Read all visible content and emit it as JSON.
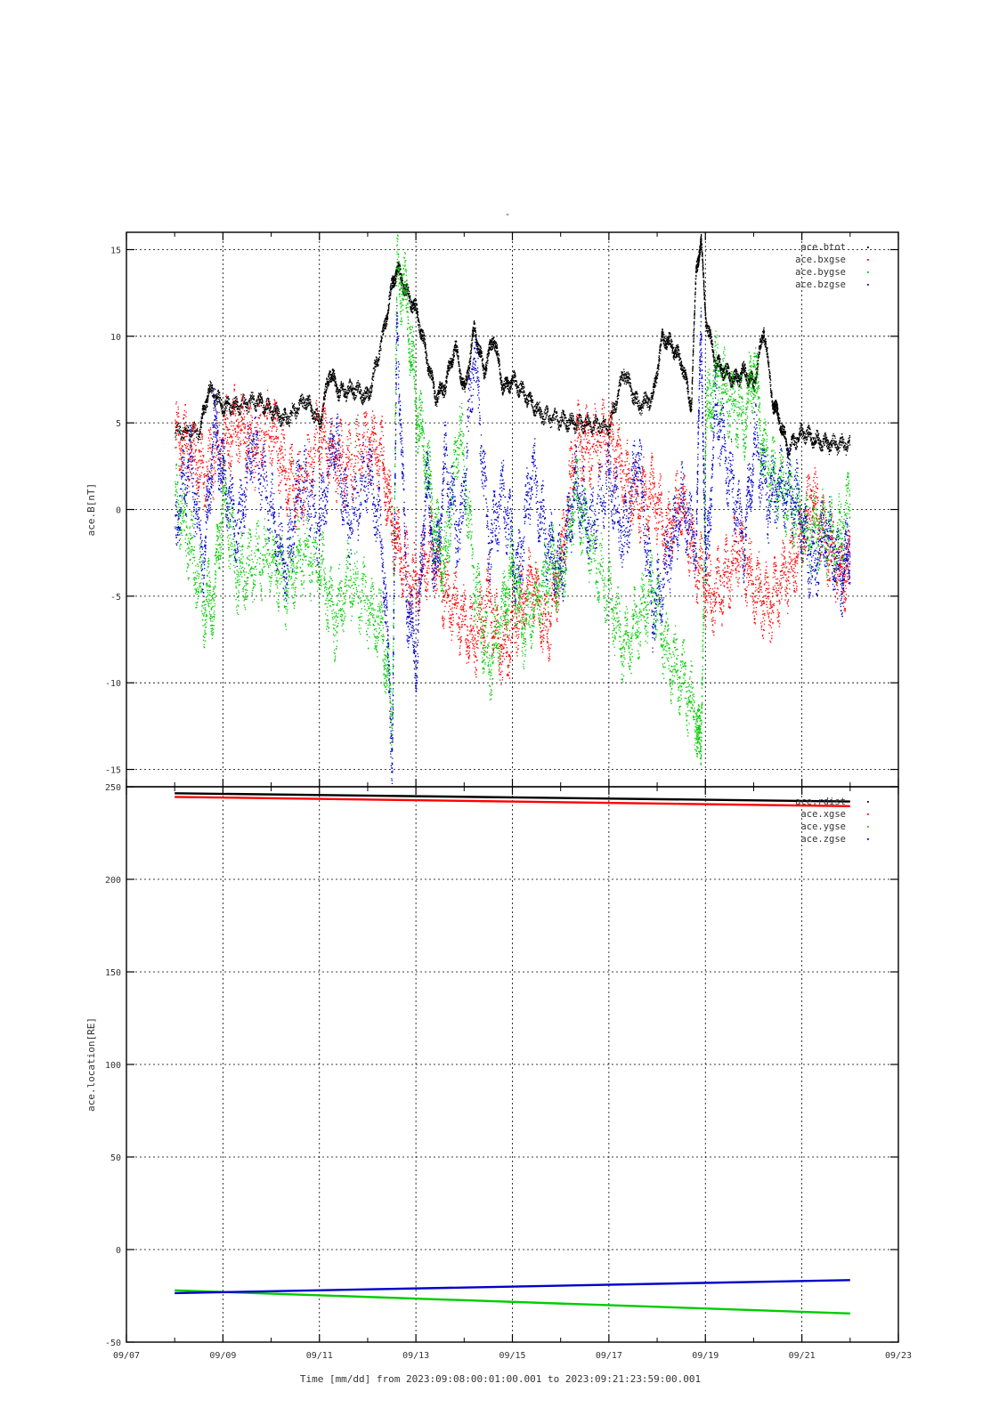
{
  "figure": {
    "title": "-",
    "xlabel": "Time [mm/dd]  from 2023:09:08:00:01:00.001  to  2023:09:21:23:59:00.001"
  },
  "chart_data": [
    {
      "type": "scatter",
      "ylabel": "ace.B[nT]",
      "ylim": [
        -16,
        16
      ],
      "yticks": [
        -15,
        -10,
        -5,
        0,
        5,
        10,
        15
      ],
      "xlim": [
        0,
        16
      ],
      "x_unit": "days since 09/07 00:00",
      "x_range_data": [
        1.0007,
        14.9993
      ],
      "xtick_labels": [
        "09/07",
        "09/09",
        "09/11",
        "09/13",
        "09/15",
        "09/17",
        "09/19",
        "09/21",
        "09/23"
      ],
      "xtick_values": [
        0,
        2,
        4,
        6,
        8,
        10,
        12,
        14,
        16
      ],
      "grid": true,
      "legend_position": "top-right",
      "series": [
        {
          "name": "ace.btot",
          "color": "#000000",
          "x": [
            1.0,
            1.5,
            1.7,
            2.0,
            2.3,
            2.7,
            3.0,
            3.3,
            3.7,
            4.0,
            4.2,
            4.4,
            4.7,
            5.0,
            5.3,
            5.5,
            5.6,
            5.8,
            6.0,
            6.2,
            6.4,
            6.6,
            6.8,
            7.0,
            7.2,
            7.4,
            7.6,
            7.8,
            8.0,
            8.3,
            8.6,
            9.0,
            9.3,
            9.6,
            10.0,
            10.3,
            10.6,
            10.9,
            11.1,
            11.3,
            11.5,
            11.7,
            11.8,
            11.9,
            12.0,
            12.2,
            12.4,
            12.6,
            12.8,
            13.0,
            13.2,
            13.4,
            13.5,
            13.7,
            14.0,
            14.3,
            14.6,
            14.99
          ],
          "y": [
            4.5,
            4.5,
            7.0,
            6.0,
            6.0,
            6.3,
            5.8,
            5.2,
            6.4,
            5.0,
            8.0,
            6.8,
            7.0,
            6.5,
            10.0,
            13.0,
            14.0,
            12.5,
            11.5,
            9.0,
            6.5,
            7.2,
            9.5,
            6.8,
            10.5,
            8.0,
            10.0,
            7.0,
            7.5,
            6.5,
            5.5,
            5.2,
            5.0,
            5.0,
            4.8,
            8.0,
            6.0,
            6.5,
            10.0,
            9.5,
            8.5,
            6.0,
            14.0,
            15.5,
            11.0,
            8.5,
            8.0,
            7.5,
            8.0,
            7.2,
            10.5,
            6.0,
            5.5,
            3.5,
            4.5,
            4.0,
            3.8,
            3.8
          ]
        },
        {
          "name": "ace.bxgse",
          "color": "#ff0000",
          "x": [
            1.0,
            1.3,
            1.6,
            2.0,
            2.3,
            2.6,
            3.0,
            3.3,
            3.6,
            4.0,
            4.3,
            4.6,
            5.0,
            5.3,
            5.5,
            5.7,
            6.0,
            6.3,
            6.6,
            6.9,
            7.2,
            7.5,
            7.8,
            8.1,
            8.4,
            8.7,
            9.0,
            9.3,
            9.6,
            10.0,
            10.3,
            10.6,
            10.9,
            11.2,
            11.5,
            11.8,
            12.1,
            12.4,
            12.7,
            13.0,
            13.3,
            13.6,
            13.9,
            14.2,
            14.5,
            14.8,
            14.99
          ],
          "y": [
            4.0,
            3.5,
            2.0,
            4.0,
            5.0,
            3.5,
            4.8,
            2.0,
            1.0,
            4.5,
            3.0,
            2.5,
            4.0,
            3.0,
            -1.0,
            -3.0,
            -4.5,
            -2.0,
            -5.0,
            -6.0,
            -7.5,
            -5.0,
            -8.5,
            -6.0,
            -4.0,
            -7.0,
            -3.0,
            4.0,
            3.5,
            4.5,
            2.0,
            0.5,
            1.0,
            -1.5,
            0.5,
            -3.0,
            -5.0,
            -4.0,
            -2.0,
            -4.5,
            -5.5,
            -4.0,
            -2.5,
            1.0,
            -2.0,
            -3.5,
            -3.5
          ]
        },
        {
          "name": "ace.bygse",
          "color": "#00cc00",
          "x": [
            1.0,
            1.3,
            1.6,
            1.8,
            2.0,
            2.3,
            2.6,
            3.0,
            3.3,
            3.6,
            4.0,
            4.3,
            4.6,
            5.0,
            5.3,
            5.5,
            5.6,
            5.8,
            6.0,
            6.2,
            6.4,
            6.6,
            6.9,
            7.2,
            7.5,
            7.8,
            8.0,
            8.2,
            8.5,
            8.8,
            9.0,
            9.3,
            9.6,
            10.0,
            10.3,
            10.6,
            10.9,
            11.2,
            11.5,
            11.8,
            11.9,
            12.0,
            12.2,
            12.5,
            12.8,
            13.0,
            13.2,
            13.5,
            13.8,
            14.1,
            14.4,
            14.7,
            14.99
          ],
          "y": [
            1.0,
            -2.0,
            -5.5,
            -5.0,
            1.0,
            -4.0,
            -3.0,
            -2.5,
            -4.5,
            -2.5,
            -3.0,
            -6.5,
            -4.0,
            -5.5,
            -7.0,
            -12.0,
            14.0,
            12.0,
            6.0,
            3.0,
            -1.5,
            -3.0,
            5.0,
            -4.0,
            -9.0,
            -6.0,
            -3.0,
            -7.0,
            -5.0,
            -3.0,
            -4.0,
            1.0,
            -2.0,
            -5.0,
            -8.0,
            -6.5,
            -4.5,
            -8.5,
            -9.5,
            -12.0,
            -14.5,
            5.0,
            8.0,
            6.5,
            5.0,
            8.5,
            3.0,
            1.5,
            0.5,
            -1.5,
            -1.0,
            -2.0,
            0.5
          ]
        },
        {
          "name": "ace.bzgse",
          "color": "#0000cc",
          "x": [
            1.0,
            1.3,
            1.6,
            1.8,
            2.0,
            2.3,
            2.6,
            3.0,
            3.3,
            3.6,
            4.0,
            4.3,
            4.6,
            5.0,
            5.3,
            5.5,
            5.6,
            5.8,
            6.0,
            6.2,
            6.4,
            6.6,
            6.9,
            7.2,
            7.5,
            7.8,
            8.1,
            8.4,
            8.7,
            9.0,
            9.3,
            9.6,
            10.0,
            10.3,
            10.6,
            10.9,
            11.2,
            11.5,
            11.8,
            11.9,
            12.0,
            12.2,
            12.5,
            12.8,
            13.0,
            13.3,
            13.6,
            13.9,
            14.2,
            14.5,
            14.8,
            14.99
          ],
          "y": [
            -1.0,
            3.0,
            -3.0,
            5.0,
            2.0,
            -1.5,
            4.0,
            0.0,
            -3.5,
            2.0,
            -1.0,
            4.5,
            -1.0,
            2.5,
            -2.0,
            -14.0,
            11.0,
            -5.0,
            -9.0,
            2.0,
            -4.0,
            3.0,
            -2.0,
            9.5,
            -2.0,
            1.0,
            -4.0,
            2.5,
            -2.0,
            -3.5,
            1.5,
            -1.0,
            2.0,
            -2.0,
            3.5,
            -6.0,
            -3.0,
            0.5,
            -2.0,
            11.0,
            -4.0,
            6.0,
            2.0,
            -2.0,
            4.0,
            0.5,
            1.5,
            0.5,
            -3.5,
            -1.0,
            -4.0,
            -2.0
          ]
        }
      ]
    },
    {
      "type": "line",
      "ylabel": "ace.location[RE]",
      "ylim": [
        -50,
        250
      ],
      "yticks": [
        -50,
        0,
        50,
        100,
        150,
        200,
        250
      ],
      "xlim": [
        0,
        16
      ],
      "x_unit": "days since 09/07 00:00",
      "xtick_labels": [
        "09/07",
        "09/09",
        "09/11",
        "09/13",
        "09/15",
        "09/17",
        "09/19",
        "09/21",
        "09/23"
      ],
      "xtick_values": [
        0,
        2,
        4,
        6,
        8,
        10,
        12,
        14,
        16
      ],
      "grid": true,
      "legend_position": "top-right",
      "series": [
        {
          "name": "ace.rdist",
          "color": "#000000",
          "x": [
            1.0007,
            14.9993
          ],
          "y": [
            246.5,
            242.0
          ]
        },
        {
          "name": "ace.xgse",
          "color": "#ff0000",
          "x": [
            1.0007,
            14.9993
          ],
          "y": [
            244.5,
            239.5
          ]
        },
        {
          "name": "ace.ygse",
          "color": "#00cc00",
          "x": [
            1.0007,
            14.9993
          ],
          "y": [
            -22.0,
            -34.5
          ]
        },
        {
          "name": "ace.zgse",
          "color": "#0000cc",
          "x": [
            1.0007,
            14.9993
          ],
          "y": [
            -23.5,
            -16.5
          ]
        }
      ]
    }
  ]
}
